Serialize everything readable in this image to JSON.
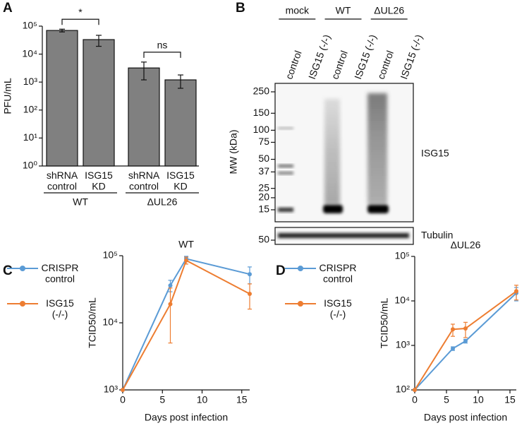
{
  "panel_labels": [
    "A",
    "B",
    "C",
    "D"
  ],
  "chart_data": [
    {
      "type": "bar",
      "y_label": "PFU/mL",
      "categories": [
        "shRNA control",
        "ISG15 KD",
        "shRNA control",
        "ISG15 KD"
      ],
      "group_labels": [
        "WT",
        "ΔUL26"
      ],
      "values": [
        70000,
        33000,
        3200,
        1200
      ],
      "errors": [
        8000,
        14000,
        2000,
        600
      ],
      "color": "#808080",
      "log_scale": true,
      "ylim": [
        1,
        100000
      ],
      "yticks": [
        {
          "value": 1,
          "label": "10⁰"
        },
        {
          "value": 10,
          "label": "10¹"
        },
        {
          "value": 100,
          "label": "10²"
        },
        {
          "value": 1000,
          "label": "10³"
        },
        {
          "value": 10000,
          "label": "10⁴"
        },
        {
          "value": 100000,
          "label": "10⁵"
        }
      ],
      "annotations": [
        "*",
        "ns"
      ]
    },
    {
      "type": "line",
      "title": "WT",
      "x_label": "Days post infection",
      "y_label": "TCID50/mL",
      "log_scale": true,
      "x": [
        0,
        6,
        8,
        16
      ],
      "series": [
        {
          "name": "CRISPR control",
          "color": "#5b9bd5",
          "values": [
            1000,
            36000,
            90000,
            53000
          ],
          "errors": [
            0,
            7000,
            8000,
            15000
          ]
        },
        {
          "name": "ISG15 (-/-)",
          "color": "#ed7d31",
          "values": [
            1000,
            19000,
            85000,
            27000
          ],
          "errors": [
            0,
            14000,
            10000,
            11000
          ]
        }
      ],
      "xlim": [
        0,
        16
      ],
      "xticks": [
        0,
        5,
        10,
        15
      ],
      "ylim": [
        1000,
        100000
      ],
      "yticks": [
        {
          "value": 1000,
          "label": "10³"
        },
        {
          "value": 10000,
          "label": "10⁴"
        },
        {
          "value": 100000,
          "label": "10⁵"
        }
      ]
    },
    {
      "type": "line",
      "title": "ΔUL26",
      "x_label": "Days post infection",
      "y_label": "TCID50/mL",
      "log_scale": true,
      "x": [
        0,
        6,
        8,
        16
      ],
      "series": [
        {
          "name": "CRISPR control",
          "color": "#5b9bd5",
          "values": [
            100,
            850,
            1250,
            15000
          ],
          "errors": [
            0,
            80,
            120,
            5000
          ]
        },
        {
          "name": "ISG15 (-/-)",
          "color": "#ed7d31",
          "values": [
            100,
            2300,
            2400,
            16500
          ],
          "errors": [
            0,
            700,
            900,
            6000
          ]
        }
      ],
      "xlim": [
        0,
        16
      ],
      "xticks": [
        0,
        5,
        10,
        15
      ],
      "ylim": [
        100,
        100000
      ],
      "yticks": [
        {
          "value": 100,
          "label": "10²"
        },
        {
          "value": 1000,
          "label": "10³"
        },
        {
          "value": 10000,
          "label": "10⁴"
        },
        {
          "value": 100000,
          "label": "10⁵"
        }
      ]
    }
  ],
  "blot": {
    "groups": [
      "mock",
      "WT",
      "ΔUL26"
    ],
    "lanes": [
      "control",
      "ISG15 (-/-)",
      "control",
      "ISG15 (-/-)",
      "control",
      "ISG15 (-/-)"
    ],
    "axis_label": "MW (kDa)",
    "mw_markers": [
      250,
      150,
      100,
      75,
      50,
      37,
      25,
      20,
      15
    ],
    "tubulin_marker": 50,
    "labels": [
      "ISG15",
      "Tubulin"
    ]
  }
}
